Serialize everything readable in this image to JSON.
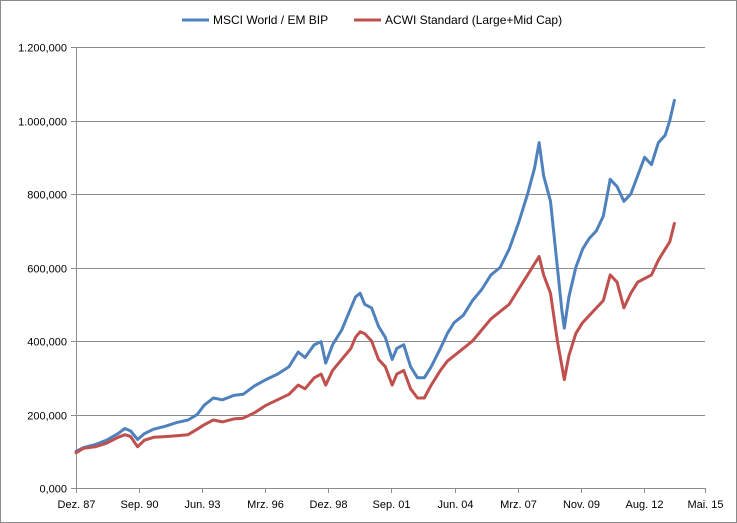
{
  "chart_data": {
    "type": "line",
    "title": "",
    "xlabel": "",
    "ylabel": "",
    "grid": true,
    "legend_position": "top",
    "xlim": [
      1987.917,
      2015.333
    ],
    "ylim": [
      0,
      1200000
    ],
    "x_ticks": [
      {
        "label": "Dez. 87",
        "value": 1987.917
      },
      {
        "label": "Sep. 90",
        "value": 1990.667
      },
      {
        "label": "Jun. 93",
        "value": 1993.417
      },
      {
        "label": "Mrz. 96",
        "value": 1996.167
      },
      {
        "label": "Dez. 98",
        "value": 1998.917
      },
      {
        "label": "Sep. 01",
        "value": 2001.667
      },
      {
        "label": "Jun. 04",
        "value": 2004.417
      },
      {
        "label": "Mrz. 07",
        "value": 2007.167
      },
      {
        "label": "Nov. 09",
        "value": 2009.917
      },
      {
        "label": "Aug. 12",
        "value": 2012.667
      },
      {
        "label": "Mai. 15",
        "value": 2015.333
      }
    ],
    "y_ticks": [
      {
        "label": "0,000",
        "value": 0
      },
      {
        "label": "200,000",
        "value": 200000
      },
      {
        "label": "400,000",
        "value": 400000
      },
      {
        "label": "600,000",
        "value": 600000
      },
      {
        "label": "800,000",
        "value": 800000
      },
      {
        "label": "1.000,000",
        "value": 1000000
      },
      {
        "label": "1.200,000",
        "value": 1200000
      }
    ],
    "series": [
      {
        "name": "MSCI World / EM BIP",
        "color": "#4f81bd",
        "points": [
          [
            1987.92,
            100000
          ],
          [
            1988.25,
            110000
          ],
          [
            1988.75,
            118000
          ],
          [
            1989.25,
            130000
          ],
          [
            1989.75,
            148000
          ],
          [
            1990.05,
            162000
          ],
          [
            1990.3,
            155000
          ],
          [
            1990.6,
            132000
          ],
          [
            1990.9,
            148000
          ],
          [
            1991.3,
            160000
          ],
          [
            1991.8,
            168000
          ],
          [
            1992.3,
            178000
          ],
          [
            1992.8,
            185000
          ],
          [
            1993.2,
            200000
          ],
          [
            1993.5,
            225000
          ],
          [
            1993.9,
            245000
          ],
          [
            1994.3,
            240000
          ],
          [
            1994.8,
            252000
          ],
          [
            1995.2,
            255000
          ],
          [
            1995.7,
            278000
          ],
          [
            1996.2,
            295000
          ],
          [
            1996.7,
            310000
          ],
          [
            1997.2,
            330000
          ],
          [
            1997.6,
            370000
          ],
          [
            1997.9,
            355000
          ],
          [
            1998.3,
            390000
          ],
          [
            1998.6,
            398000
          ],
          [
            1998.8,
            340000
          ],
          [
            1999.1,
            390000
          ],
          [
            1999.5,
            430000
          ],
          [
            1999.9,
            490000
          ],
          [
            2000.1,
            520000
          ],
          [
            2000.3,
            530000
          ],
          [
            2000.5,
            500000
          ],
          [
            2000.8,
            490000
          ],
          [
            2001.1,
            440000
          ],
          [
            2001.4,
            410000
          ],
          [
            2001.7,
            350000
          ],
          [
            2001.9,
            380000
          ],
          [
            2002.2,
            390000
          ],
          [
            2002.5,
            330000
          ],
          [
            2002.8,
            300000
          ],
          [
            2003.1,
            300000
          ],
          [
            2003.4,
            330000
          ],
          [
            2003.8,
            380000
          ],
          [
            2004.1,
            420000
          ],
          [
            2004.4,
            450000
          ],
          [
            2004.8,
            470000
          ],
          [
            2005.2,
            510000
          ],
          [
            2005.6,
            540000
          ],
          [
            2006.0,
            580000
          ],
          [
            2006.4,
            600000
          ],
          [
            2006.8,
            650000
          ],
          [
            2007.2,
            720000
          ],
          [
            2007.6,
            800000
          ],
          [
            2007.9,
            870000
          ],
          [
            2008.1,
            940000
          ],
          [
            2008.3,
            850000
          ],
          [
            2008.6,
            780000
          ],
          [
            2008.9,
            600000
          ],
          [
            2009.1,
            480000
          ],
          [
            2009.2,
            435000
          ],
          [
            2009.4,
            520000
          ],
          [
            2009.7,
            600000
          ],
          [
            2010.0,
            650000
          ],
          [
            2010.3,
            680000
          ],
          [
            2010.6,
            700000
          ],
          [
            2010.9,
            740000
          ],
          [
            2011.2,
            840000
          ],
          [
            2011.5,
            820000
          ],
          [
            2011.8,
            780000
          ],
          [
            2012.1,
            800000
          ],
          [
            2012.4,
            850000
          ],
          [
            2012.7,
            900000
          ],
          [
            2013.0,
            880000
          ],
          [
            2013.3,
            940000
          ],
          [
            2013.6,
            960000
          ],
          [
            2013.8,
            1000000
          ],
          [
            2014.0,
            1055000
          ]
        ]
      },
      {
        "name": "ACWI Standard (Large+Mid Cap)",
        "color": "#c0504d",
        "points": [
          [
            1987.92,
            96000
          ],
          [
            1988.25,
            108000
          ],
          [
            1988.75,
            112000
          ],
          [
            1989.25,
            122000
          ],
          [
            1989.75,
            138000
          ],
          [
            1990.05,
            145000
          ],
          [
            1990.3,
            140000
          ],
          [
            1990.6,
            112000
          ],
          [
            1990.9,
            130000
          ],
          [
            1991.3,
            138000
          ],
          [
            1991.8,
            140000
          ],
          [
            1992.3,
            142000
          ],
          [
            1992.8,
            145000
          ],
          [
            1993.2,
            160000
          ],
          [
            1993.5,
            172000
          ],
          [
            1993.9,
            185000
          ],
          [
            1994.3,
            180000
          ],
          [
            1994.8,
            188000
          ],
          [
            1995.2,
            190000
          ],
          [
            1995.7,
            205000
          ],
          [
            1996.2,
            225000
          ],
          [
            1996.7,
            240000
          ],
          [
            1997.2,
            255000
          ],
          [
            1997.6,
            280000
          ],
          [
            1997.9,
            270000
          ],
          [
            1998.3,
            300000
          ],
          [
            1998.6,
            310000
          ],
          [
            1998.8,
            280000
          ],
          [
            1999.1,
            320000
          ],
          [
            1999.5,
            350000
          ],
          [
            1999.9,
            380000
          ],
          [
            2000.1,
            410000
          ],
          [
            2000.3,
            425000
          ],
          [
            2000.5,
            420000
          ],
          [
            2000.8,
            400000
          ],
          [
            2001.1,
            350000
          ],
          [
            2001.4,
            330000
          ],
          [
            2001.7,
            280000
          ],
          [
            2001.9,
            310000
          ],
          [
            2002.2,
            320000
          ],
          [
            2002.5,
            270000
          ],
          [
            2002.8,
            245000
          ],
          [
            2003.1,
            245000
          ],
          [
            2003.4,
            280000
          ],
          [
            2003.8,
            320000
          ],
          [
            2004.1,
            345000
          ],
          [
            2004.4,
            360000
          ],
          [
            2004.8,
            380000
          ],
          [
            2005.2,
            400000
          ],
          [
            2005.6,
            430000
          ],
          [
            2006.0,
            460000
          ],
          [
            2006.4,
            480000
          ],
          [
            2006.8,
            500000
          ],
          [
            2007.2,
            540000
          ],
          [
            2007.6,
            580000
          ],
          [
            2007.9,
            610000
          ],
          [
            2008.1,
            630000
          ],
          [
            2008.3,
            580000
          ],
          [
            2008.6,
            530000
          ],
          [
            2008.9,
            400000
          ],
          [
            2009.1,
            330000
          ],
          [
            2009.2,
            295000
          ],
          [
            2009.4,
            360000
          ],
          [
            2009.7,
            420000
          ],
          [
            2010.0,
            450000
          ],
          [
            2010.3,
            470000
          ],
          [
            2010.6,
            490000
          ],
          [
            2010.9,
            510000
          ],
          [
            2011.2,
            580000
          ],
          [
            2011.5,
            560000
          ],
          [
            2011.8,
            490000
          ],
          [
            2012.1,
            530000
          ],
          [
            2012.4,
            560000
          ],
          [
            2012.7,
            570000
          ],
          [
            2013.0,
            580000
          ],
          [
            2013.3,
            620000
          ],
          [
            2013.6,
            650000
          ],
          [
            2013.8,
            670000
          ],
          [
            2014.0,
            720000
          ]
        ]
      }
    ]
  }
}
